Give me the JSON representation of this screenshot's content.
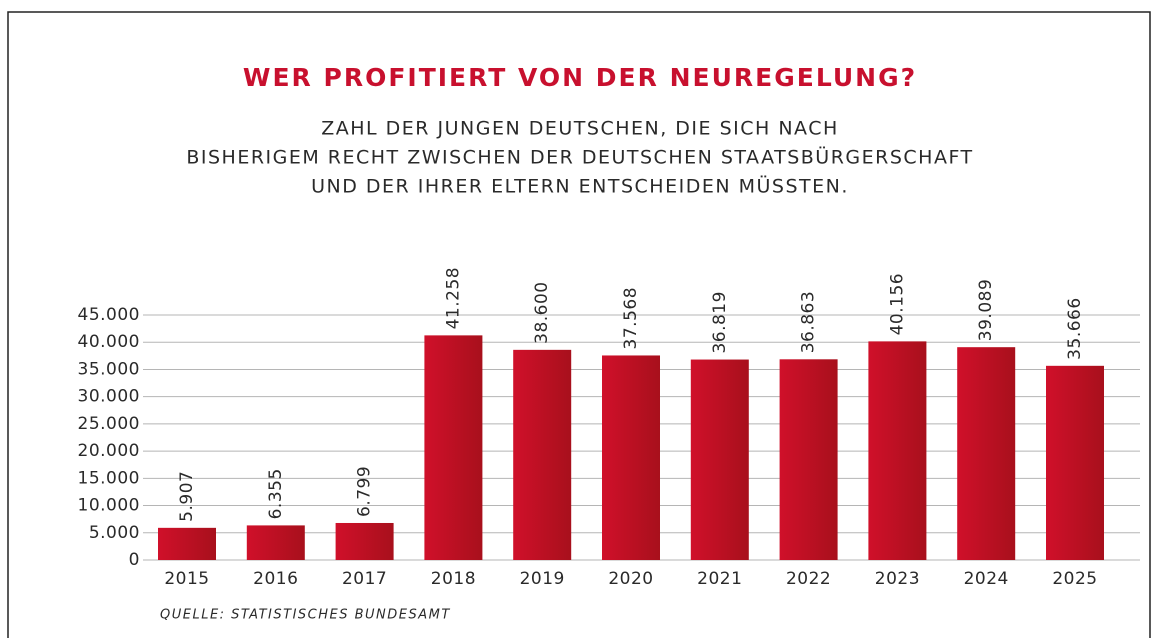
{
  "chart_data": {
    "type": "bar",
    "title": "WER PROFITIERT VON DER NEUREGELUNG?",
    "subtitle": [
      "ZAHL DER JUNGEN DEUTSCHEN, DIE SICH NACH",
      "BISHERIGEM RECHT ZWISCHEN DER DEUTSCHEN STAATSBÜRGERSCHAFT",
      "UND DER IHRER ELTERN ENTSCHEIDEN MÜSSTEN."
    ],
    "source": "QUELLE: STATISTISCHES BUNDESAMT",
    "categories": [
      "2015",
      "2016",
      "2017",
      "2018",
      "2019",
      "2020",
      "2021",
      "2022",
      "2023",
      "2024",
      "2025"
    ],
    "values": [
      5907,
      6355,
      6799,
      41258,
      38600,
      37568,
      36819,
      36863,
      40156,
      39089,
      35666
    ],
    "value_labels": [
      "5.907",
      "6.355",
      "6.799",
      "41.258",
      "38.600",
      "37.568",
      "36.819",
      "36.863",
      "40.156",
      "39.089",
      "35.666"
    ],
    "color": "#c20a1e",
    "ylim": [
      0,
      45000
    ],
    "yticks": [
      0,
      {
        "value": 5000,
        "label": "5.000"
      },
      {
        "value": 10000,
        "label": "10.000"
      },
      {
        "value": 15000,
        "label": "15.000"
      },
      {
        "value": 20000,
        "label": "20.000"
      },
      {
        "value": 25000,
        "label": "25.000"
      },
      {
        "value": 30000,
        "label": "30.000"
      },
      {
        "value": 35000,
        "label": "35.000"
      },
      {
        "value": 40000,
        "label": "40.000"
      },
      {
        "value": 45000,
        "label": "45.000"
      }
    ],
    "grid": true
  }
}
